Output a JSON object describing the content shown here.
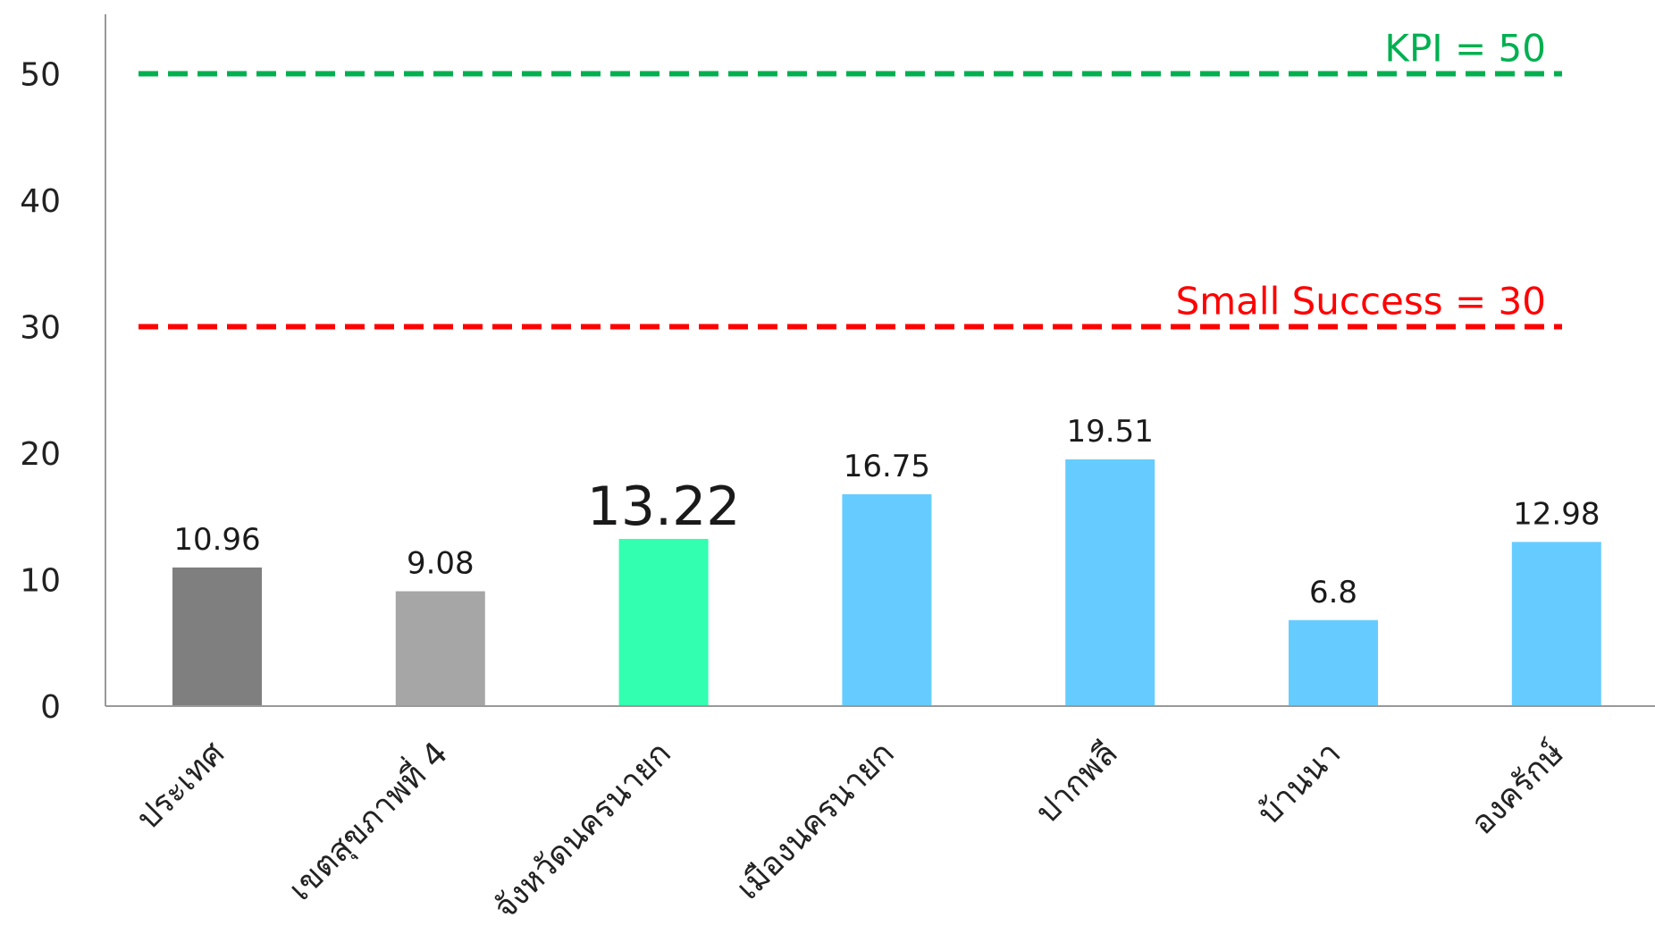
{
  "chart_data": {
    "type": "bar",
    "title": "",
    "xlabel": "",
    "ylabel": "",
    "ylim": [
      0,
      55
    ],
    "yticks": [
      0,
      10,
      20,
      30,
      40,
      50
    ],
    "ytick_labels": [
      "0",
      "10",
      "20",
      "30",
      "40",
      "50"
    ],
    "categories": [
      "ประเทศ",
      "เขตสุขภาพที่ 4",
      "จังหวัดนครนายก",
      "เมืองนครนายก",
      "ปากพลี",
      "บ้านนา",
      "องครักษ์"
    ],
    "values": [
      10.96,
      9.08,
      13.22,
      16.75,
      19.51,
      6.8,
      12.98
    ],
    "value_labels": [
      "10.96",
      "9.08",
      "13.22",
      "16.75",
      "19.51",
      "6.8",
      "12.98"
    ],
    "bar_colors": [
      "#7f7f7f",
      "#a6a6a6",
      "#33ffb0",
      "#66ccff",
      "#66ccff",
      "#66ccff",
      "#66ccff"
    ],
    "emphasized_index": 2,
    "grid": false,
    "reference_lines": [
      {
        "value": 50,
        "label": "KPI = 50",
        "color": "#00b050",
        "style": "dashed"
      },
      {
        "value": 30,
        "label": "Small Success = 30",
        "color": "#ff0000",
        "style": "dashed"
      }
    ],
    "axis_color": "#999999"
  }
}
